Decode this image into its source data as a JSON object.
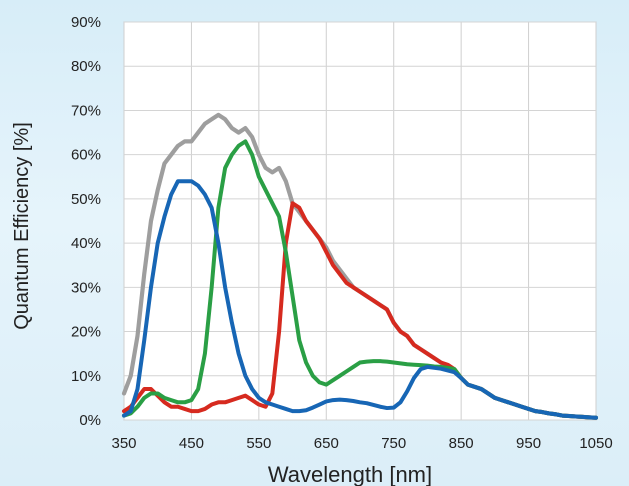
{
  "chart_data": {
    "type": "line",
    "title": "",
    "xlabel": "Wavelength [nm]",
    "ylabel": "Quantum Efficiency [%]",
    "xlim": [
      350,
      1050
    ],
    "ylim": [
      0,
      90
    ],
    "x_ticks": [
      350,
      450,
      550,
      650,
      750,
      850,
      950,
      1050
    ],
    "y_ticks": [
      0,
      10,
      20,
      30,
      40,
      50,
      60,
      70,
      80,
      90
    ],
    "x_tick_labels": [
      "350",
      "450",
      "550",
      "650",
      "750",
      "850",
      "950",
      "1050"
    ],
    "y_tick_labels": [
      "0%",
      "10%",
      "20%",
      "30%",
      "40%",
      "50%",
      "60%",
      "70%",
      "80%",
      "90%"
    ],
    "grid": true,
    "legend": "none",
    "series": [
      {
        "color": "#9e9e9e",
        "points": [
          [
            350,
            6
          ],
          [
            360,
            10
          ],
          [
            370,
            19
          ],
          [
            380,
            33
          ],
          [
            390,
            45
          ],
          [
            400,
            52
          ],
          [
            410,
            58
          ],
          [
            420,
            60
          ],
          [
            430,
            62
          ],
          [
            440,
            63
          ],
          [
            450,
            63
          ],
          [
            460,
            65
          ],
          [
            470,
            67
          ],
          [
            480,
            68
          ],
          [
            490,
            69
          ],
          [
            500,
            68
          ],
          [
            510,
            66
          ],
          [
            520,
            65
          ],
          [
            530,
            66
          ],
          [
            540,
            64
          ],
          [
            550,
            60
          ],
          [
            560,
            57
          ],
          [
            570,
            56
          ],
          [
            580,
            57
          ],
          [
            590,
            54
          ],
          [
            600,
            49
          ],
          [
            610,
            47
          ],
          [
            620,
            45
          ],
          [
            630,
            43
          ],
          [
            640,
            41
          ],
          [
            650,
            39
          ],
          [
            660,
            36
          ],
          [
            670,
            34
          ],
          [
            680,
            32
          ],
          [
            690,
            30
          ],
          [
            700,
            29
          ],
          [
            710,
            28
          ],
          [
            720,
            27
          ],
          [
            730,
            26
          ],
          [
            740,
            25
          ],
          [
            750,
            22
          ],
          [
            760,
            20
          ],
          [
            770,
            19
          ],
          [
            780,
            17
          ],
          [
            790,
            16
          ],
          [
            800,
            15
          ],
          [
            810,
            14
          ],
          [
            820,
            13
          ],
          [
            830,
            12
          ],
          [
            840,
            11
          ],
          [
            850,
            9.5
          ],
          [
            860,
            8
          ],
          [
            870,
            7.5
          ],
          [
            880,
            7
          ],
          [
            890,
            6
          ],
          [
            900,
            5
          ],
          [
            910,
            4.5
          ],
          [
            920,
            4
          ],
          [
            930,
            3.5
          ],
          [
            940,
            3
          ],
          [
            950,
            2.5
          ],
          [
            960,
            2
          ],
          [
            970,
            1.8
          ],
          [
            980,
            1.5
          ],
          [
            990,
            1.3
          ],
          [
            1000,
            1
          ],
          [
            1010,
            0.9
          ],
          [
            1020,
            0.8
          ],
          [
            1030,
            0.7
          ],
          [
            1040,
            0.6
          ],
          [
            1050,
            0.5
          ]
        ]
      },
      {
        "color": "#d62a1f",
        "points": [
          [
            350,
            2
          ],
          [
            360,
            3
          ],
          [
            370,
            5
          ],
          [
            380,
            7
          ],
          [
            390,
            7
          ],
          [
            400,
            5.5
          ],
          [
            410,
            4
          ],
          [
            420,
            3
          ],
          [
            430,
            3
          ],
          [
            440,
            2.5
          ],
          [
            450,
            2
          ],
          [
            460,
            2
          ],
          [
            470,
            2.5
          ],
          [
            480,
            3.5
          ],
          [
            490,
            4
          ],
          [
            500,
            4
          ],
          [
            510,
            4.5
          ],
          [
            520,
            5
          ],
          [
            530,
            5.5
          ],
          [
            540,
            4.5
          ],
          [
            550,
            3.5
          ],
          [
            560,
            3
          ],
          [
            570,
            6
          ],
          [
            580,
            20
          ],
          [
            590,
            40
          ],
          [
            600,
            49
          ],
          [
            610,
            48
          ],
          [
            620,
            45
          ],
          [
            630,
            43
          ],
          [
            640,
            41
          ],
          [
            650,
            38
          ],
          [
            660,
            35
          ],
          [
            670,
            33
          ],
          [
            680,
            31
          ],
          [
            690,
            30
          ],
          [
            700,
            29
          ],
          [
            710,
            28
          ],
          [
            720,
            27
          ],
          [
            730,
            26
          ],
          [
            740,
            25
          ],
          [
            750,
            22
          ],
          [
            760,
            20
          ],
          [
            770,
            19
          ],
          [
            780,
            17
          ],
          [
            790,
            16
          ],
          [
            800,
            15
          ],
          [
            810,
            14
          ],
          [
            820,
            13
          ],
          [
            830,
            12.5
          ],
          [
            840,
            11.5
          ],
          [
            850,
            9.5
          ],
          [
            860,
            8
          ],
          [
            870,
            7.5
          ],
          [
            880,
            7
          ],
          [
            890,
            6
          ],
          [
            900,
            5
          ],
          [
            910,
            4.5
          ],
          [
            920,
            4
          ],
          [
            930,
            3.5
          ],
          [
            940,
            3
          ],
          [
            950,
            2.5
          ],
          [
            960,
            2
          ],
          [
            970,
            1.8
          ],
          [
            980,
            1.5
          ],
          [
            990,
            1.3
          ],
          [
            1000,
            1
          ],
          [
            1010,
            0.9
          ],
          [
            1020,
            0.8
          ],
          [
            1030,
            0.7
          ],
          [
            1040,
            0.6
          ],
          [
            1050,
            0.5
          ]
        ]
      },
      {
        "color": "#2a9f45",
        "points": [
          [
            350,
            1
          ],
          [
            360,
            1.5
          ],
          [
            370,
            3
          ],
          [
            380,
            5
          ],
          [
            390,
            6
          ],
          [
            400,
            6
          ],
          [
            410,
            5
          ],
          [
            420,
            4.5
          ],
          [
            430,
            4
          ],
          [
            440,
            4
          ],
          [
            450,
            4.5
          ],
          [
            460,
            7
          ],
          [
            470,
            15
          ],
          [
            480,
            30
          ],
          [
            490,
            48
          ],
          [
            500,
            57
          ],
          [
            510,
            60
          ],
          [
            520,
            62
          ],
          [
            530,
            63
          ],
          [
            540,
            60
          ],
          [
            550,
            55
          ],
          [
            560,
            52
          ],
          [
            570,
            49
          ],
          [
            580,
            46
          ],
          [
            590,
            38
          ],
          [
            600,
            28
          ],
          [
            610,
            18
          ],
          [
            620,
            13
          ],
          [
            630,
            10
          ],
          [
            640,
            8.5
          ],
          [
            650,
            8
          ],
          [
            660,
            9
          ],
          [
            670,
            10
          ],
          [
            680,
            11
          ],
          [
            690,
            12
          ],
          [
            700,
            13
          ],
          [
            710,
            13.2
          ],
          [
            720,
            13.3
          ],
          [
            730,
            13.3
          ],
          [
            740,
            13.2
          ],
          [
            750,
            13
          ],
          [
            760,
            12.8
          ],
          [
            770,
            12.6
          ],
          [
            780,
            12.5
          ],
          [
            790,
            12.4
          ],
          [
            800,
            12.3
          ],
          [
            810,
            12.1
          ],
          [
            820,
            12
          ],
          [
            830,
            11.8
          ],
          [
            840,
            11.5
          ],
          [
            850,
            9.5
          ],
          [
            860,
            8
          ],
          [
            870,
            7.5
          ],
          [
            880,
            7
          ],
          [
            890,
            6
          ],
          [
            900,
            5
          ],
          [
            910,
            4.5
          ],
          [
            920,
            4
          ],
          [
            930,
            3.5
          ],
          [
            940,
            3
          ],
          [
            950,
            2.5
          ],
          [
            960,
            2
          ],
          [
            970,
            1.8
          ],
          [
            980,
            1.5
          ],
          [
            990,
            1.3
          ],
          [
            1000,
            1
          ],
          [
            1010,
            0.9
          ],
          [
            1020,
            0.8
          ],
          [
            1030,
            0.7
          ],
          [
            1040,
            0.6
          ],
          [
            1050,
            0.5
          ]
        ]
      },
      {
        "color": "#1766b5",
        "points": [
          [
            350,
            1
          ],
          [
            360,
            2
          ],
          [
            370,
            7
          ],
          [
            380,
            18
          ],
          [
            390,
            30
          ],
          [
            400,
            40
          ],
          [
            410,
            46
          ],
          [
            420,
            51
          ],
          [
            430,
            54
          ],
          [
            440,
            54
          ],
          [
            450,
            54
          ],
          [
            460,
            53
          ],
          [
            470,
            51
          ],
          [
            480,
            48
          ],
          [
            490,
            40
          ],
          [
            500,
            30
          ],
          [
            510,
            22
          ],
          [
            520,
            15
          ],
          [
            530,
            10
          ],
          [
            540,
            7
          ],
          [
            550,
            5
          ],
          [
            560,
            4
          ],
          [
            570,
            3.5
          ],
          [
            580,
            3
          ],
          [
            590,
            2.5
          ],
          [
            600,
            2
          ],
          [
            610,
            2
          ],
          [
            620,
            2.2
          ],
          [
            630,
            2.8
          ],
          [
            640,
            3.5
          ],
          [
            650,
            4.2
          ],
          [
            660,
            4.5
          ],
          [
            670,
            4.6
          ],
          [
            680,
            4.5
          ],
          [
            690,
            4.3
          ],
          [
            700,
            4
          ],
          [
            710,
            3.8
          ],
          [
            720,
            3.4
          ],
          [
            730,
            3
          ],
          [
            740,
            2.7
          ],
          [
            750,
            2.8
          ],
          [
            760,
            4
          ],
          [
            770,
            6.5
          ],
          [
            780,
            9.5
          ],
          [
            790,
            11.5
          ],
          [
            800,
            12
          ],
          [
            810,
            11.8
          ],
          [
            820,
            11.6
          ],
          [
            830,
            11.2
          ],
          [
            840,
            10.8
          ],
          [
            850,
            9.5
          ],
          [
            860,
            8
          ],
          [
            870,
            7.5
          ],
          [
            880,
            7
          ],
          [
            890,
            6
          ],
          [
            900,
            5
          ],
          [
            910,
            4.5
          ],
          [
            920,
            4
          ],
          [
            930,
            3.5
          ],
          [
            940,
            3
          ],
          [
            950,
            2.5
          ],
          [
            960,
            2
          ],
          [
            970,
            1.8
          ],
          [
            980,
            1.5
          ],
          [
            990,
            1.3
          ],
          [
            1000,
            1
          ],
          [
            1010,
            0.9
          ],
          [
            1020,
            0.8
          ],
          [
            1030,
            0.7
          ],
          [
            1040,
            0.6
          ],
          [
            1050,
            0.5
          ]
        ]
      }
    ]
  }
}
